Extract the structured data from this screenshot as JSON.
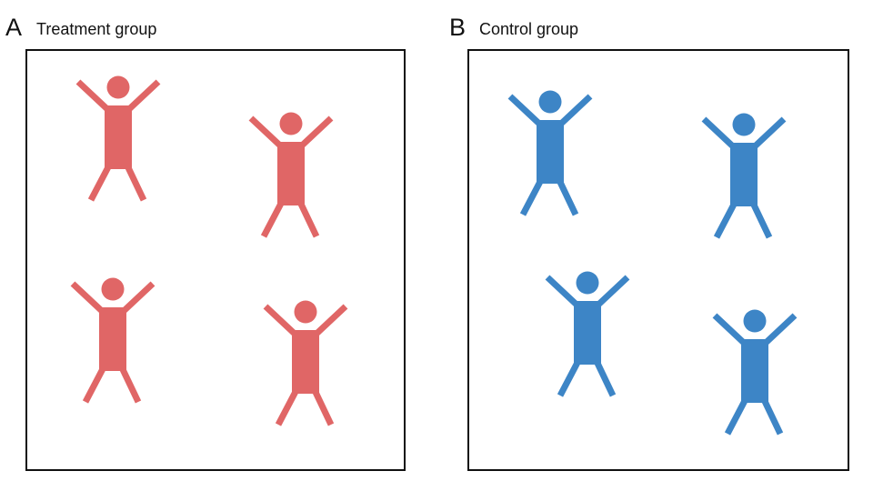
{
  "panels": [
    {
      "letter": "A",
      "title": "Treatment group",
      "color": "#e06666",
      "figure_count": 4
    },
    {
      "letter": "B",
      "title": "Control group",
      "color": "#3d85c6",
      "figure_count": 4
    }
  ],
  "figure_icon": "person-arms-raised-icon"
}
